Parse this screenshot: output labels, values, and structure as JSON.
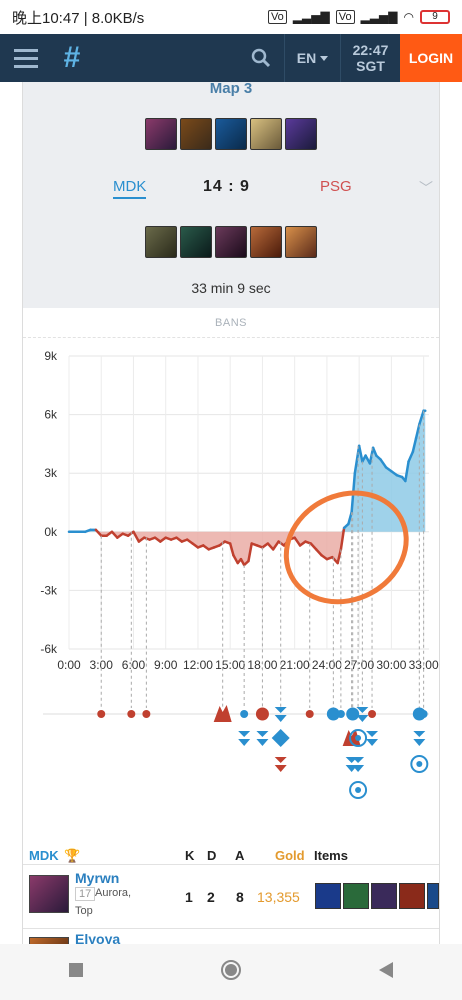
{
  "status_bar": {
    "time_text": "晚上10:47 | 8.0KB/s",
    "battery": "9"
  },
  "topbar": {
    "language": "EN",
    "time": "22:47",
    "timezone": "SGT",
    "login_label": "LOGIN"
  },
  "match": {
    "map_title": "Map 3",
    "team_a": "MDK",
    "team_b": "PSG",
    "score": "14 : 9",
    "duration": "33 min 9 sec",
    "bans_label": "BANS"
  },
  "colors": {
    "team_a": "#2a8fcf",
    "team_b": "#c0402f",
    "accent": "#ff5a14",
    "nav": "#1f3850"
  },
  "chart_data": {
    "type": "area",
    "title": "",
    "xlabel": "",
    "ylabel": "",
    "y_tick_labels": [
      "9k",
      "6k",
      "3k",
      "0k",
      "-3k",
      "-6k"
    ],
    "x_tick_labels": [
      "0:00",
      "3:00",
      "6:00",
      "9:00",
      "12:00",
      "15:00",
      "18:00",
      "21:00",
      "24:00",
      "27:00",
      "30:00",
      "33:00"
    ],
    "ylim": [
      -6000,
      9000
    ],
    "xlim": [
      0,
      33.5
    ],
    "grid": true,
    "series": [
      {
        "x": [
          0,
          1.5,
          2,
          2.5,
          3,
          3.5,
          4,
          4.5,
          5,
          5.5,
          6,
          6.5,
          7,
          7.5,
          8,
          8.5,
          9,
          9.5,
          10,
          10.5,
          11,
          11.5,
          12,
          12.5,
          13,
          13.5,
          14,
          14.5,
          15,
          15.3,
          15.7,
          16,
          16.3,
          16.7,
          17,
          17.5,
          18,
          18.5,
          19,
          19.5,
          20,
          20.5,
          21,
          21.5,
          22,
          22.5,
          23,
          23.5,
          24,
          24.5,
          25,
          25.3,
          25.6,
          26,
          26.3,
          26.6,
          27,
          27.3,
          27.6,
          28,
          28.3,
          28.6,
          29,
          29.5,
          30,
          30.5,
          31,
          31.3,
          31.6,
          32,
          32.3,
          32.6,
          33,
          33.15
        ],
        "values": [
          0,
          0,
          100,
          100,
          -200,
          -200,
          0,
          -300,
          -100,
          -200,
          0,
          -500,
          -300,
          -400,
          -300,
          -500,
          -300,
          -400,
          -300,
          -500,
          -400,
          -600,
          -800,
          -700,
          -900,
          -800,
          -700,
          -500,
          -600,
          -1200,
          -1600,
          -1400,
          -1700,
          -1500,
          -600,
          -700,
          -800,
          -600,
          -900,
          -500,
          -700,
          -400,
          -300,
          -700,
          -500,
          -600,
          -900,
          -1200,
          -1400,
          -1300,
          -1600,
          -900,
          200,
          400,
          1000,
          3000,
          4400,
          3600,
          3900,
          3500,
          4300,
          3900,
          3700,
          3300,
          3100,
          2900,
          2800,
          2600,
          3600,
          4100,
          4800,
          5500,
          6200,
          6200
        ]
      }
    ],
    "events": {
      "row1": [
        {
          "time": 3.0,
          "team": "b",
          "kind": "dot"
        },
        {
          "time": 5.8,
          "team": "b",
          "kind": "dot"
        },
        {
          "time": 7.2,
          "team": "b",
          "kind": "dot"
        },
        {
          "time": 14.3,
          "team": "b",
          "kind": "dragon"
        },
        {
          "time": 16.3,
          "team": "a",
          "kind": "dot"
        },
        {
          "time": 18.0,
          "team": "b",
          "kind": "big-dot"
        },
        {
          "time": 19.7,
          "team": "a",
          "kind": "tower"
        },
        {
          "time": 22.4,
          "team": "b",
          "kind": "dot"
        },
        {
          "time": 24.6,
          "team": "a",
          "kind": "big-dot"
        },
        {
          "time": 25.3,
          "team": "a",
          "kind": "dot"
        },
        {
          "time": 26.4,
          "team": "a",
          "kind": "big-dot"
        },
        {
          "time": 27.3,
          "team": "a",
          "kind": "tower"
        },
        {
          "time": 28.2,
          "team": "b",
          "kind": "dot"
        },
        {
          "time": 32.6,
          "team": "a",
          "kind": "big-dot"
        },
        {
          "time": 33.0,
          "team": "a",
          "kind": "dot"
        }
      ],
      "row2": [
        {
          "time": 16.3,
          "team": "a",
          "kind": "tower"
        },
        {
          "time": 18.0,
          "team": "a",
          "kind": "tower"
        },
        {
          "time": 19.7,
          "team": "a",
          "kind": "diamond"
        },
        {
          "time": 26.3,
          "team": "b",
          "kind": "dragon"
        },
        {
          "time": 26.9,
          "team": "a",
          "kind": "target"
        },
        {
          "time": 28.2,
          "team": "a",
          "kind": "tower"
        },
        {
          "time": 32.6,
          "team": "a",
          "kind": "tower"
        }
      ],
      "row3": [
        {
          "time": 19.7,
          "team": "b",
          "kind": "tower"
        },
        {
          "time": 26.3,
          "team": "a",
          "kind": "tower"
        },
        {
          "time": 26.9,
          "team": "a",
          "kind": "tower"
        },
        {
          "time": 32.6,
          "team": "a",
          "kind": "target"
        }
      ],
      "row4": [
        {
          "time": 26.9,
          "team": "a",
          "kind": "target"
        }
      ]
    }
  },
  "table": {
    "team_label": "MDK",
    "columns": {
      "k": "K",
      "d": "D",
      "a": "A",
      "gold": "Gold",
      "items": "Items"
    },
    "players": [
      {
        "name": "Myrwn",
        "level": "17",
        "champion": "Aurora,",
        "role": "Top",
        "k": "1",
        "d": "2",
        "a": "8",
        "gold": "13,355"
      },
      {
        "name": "Elyoya"
      }
    ]
  }
}
